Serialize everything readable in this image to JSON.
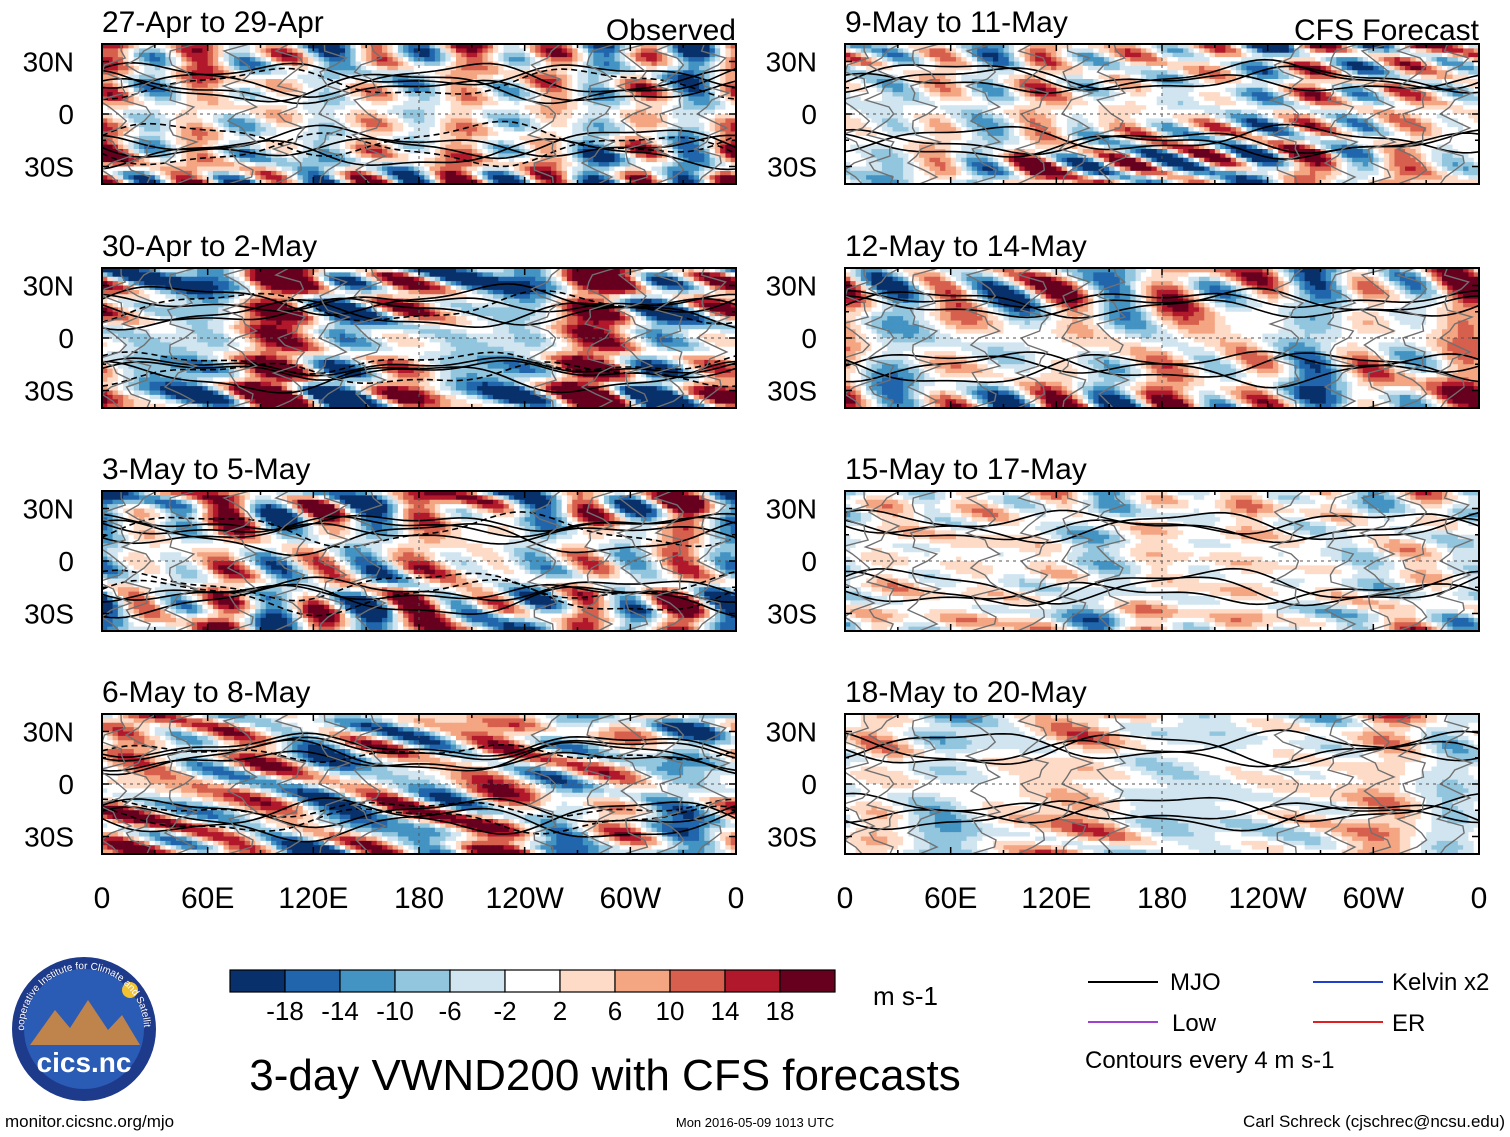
{
  "title": "3-day VWND200 with CFS forecasts",
  "labels": {
    "observed": "Observed",
    "forecast": "CFS Forecast",
    "units": "m s-1",
    "contours": "Contours every 4 m s-1",
    "site": "monitor.cicsnc.org/mjo",
    "timestamp": "Mon 2016-05-09 1013 UTC",
    "author": "Carl Schreck (cjschrec@ncsu.edu)",
    "logo_text": "cics.nc",
    "logo_ring": "Cooperative Institute for Climate and Satellites"
  },
  "colors": {
    "palette": [
      "#08306b",
      "#2166ac",
      "#4393c3",
      "#92c5de",
      "#d1e5f0",
      "#ffffff",
      "#fddbc7",
      "#f4a582",
      "#d6604d",
      "#b2182b",
      "#67001f"
    ],
    "mjo": "#000000",
    "kelvin": "#1f3fcf",
    "low": "#a040d0",
    "er": "#e02020",
    "coast": "#707070"
  },
  "chart_data": {
    "type": "heatmap",
    "variable": "VWND200",
    "xticks": [
      "0",
      "60E",
      "120E",
      "180",
      "120W",
      "60W",
      "0"
    ],
    "yticks": [
      "30N",
      "0",
      "30S"
    ],
    "xlim_deg_east": [
      0,
      360
    ],
    "ylim_deg": [
      -40,
      40
    ],
    "colorbar": {
      "levels": [
        -18,
        -14,
        -10,
        -6,
        -2,
        2,
        6,
        10,
        14,
        18
      ],
      "level_labels": [
        "-18",
        "-14",
        "-10",
        "-6",
        "-2",
        "2",
        "6",
        "10",
        "14",
        "18"
      ],
      "units": "m s-1"
    },
    "contour_interval": 4,
    "legend": [
      {
        "name": "MJO",
        "color": "#000000"
      },
      {
        "name": "Kelvin x2",
        "color": "#1f3fcf"
      },
      {
        "name": "Low",
        "color": "#a040d0"
      },
      {
        "name": "ER",
        "color": "#e02020"
      }
    ],
    "panels": [
      {
        "period": "27-Apr to 29-Apr",
        "kind": "Observed",
        "amp": 0.75,
        "seed": 1
      },
      {
        "period": "30-Apr to 2-May",
        "kind": "Observed",
        "amp": 1.35,
        "seed": 2
      },
      {
        "period": "3-May to 5-May",
        "kind": "Observed",
        "amp": 1.35,
        "seed": 3
      },
      {
        "period": "6-May to 8-May",
        "kind": "Observed",
        "amp": 1.45,
        "seed": 4
      },
      {
        "period": "9-May to 11-May",
        "kind": "CFS Forecast",
        "amp": 1.0,
        "seed": 5
      },
      {
        "period": "12-May to 14-May",
        "kind": "CFS Forecast",
        "amp": 0.8,
        "seed": 6
      },
      {
        "period": "15-May to 17-May",
        "kind": "CFS Forecast",
        "amp": 0.6,
        "seed": 7
      },
      {
        "period": "18-May to 20-May",
        "kind": "CFS Forecast",
        "amp": 0.45,
        "seed": 8
      }
    ]
  }
}
